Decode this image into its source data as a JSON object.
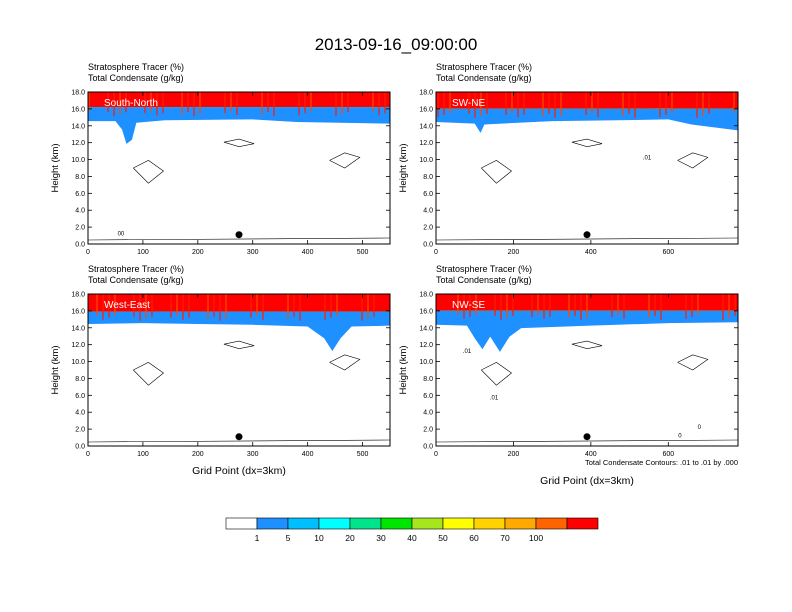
{
  "figure": {
    "title": "2013-09-16_09:00:00",
    "xlabel": "Grid Point (dx=3km)",
    "contour_note": "Total Condensate Contours: .01 to .01 by .000",
    "colorbar": {
      "labels": [
        "1",
        "5",
        "10",
        "20",
        "30",
        "40",
        "50",
        "60",
        "70",
        "100"
      ],
      "colors": [
        "#ffffff",
        "#1e90ff",
        "#00bfff",
        "#00ffff",
        "#00e58c",
        "#00e600",
        "#a5e61e",
        "#ffff00",
        "#ffd200",
        "#ffaa00",
        "#ff6400",
        "#ff0000"
      ]
    }
  },
  "chart_data": [
    {
      "type": "heatmap",
      "panel_label": "South-North",
      "subtitle_1": "Stratosphere Tracer   (%)",
      "subtitle_2": "Total Condensate   (g/kg)",
      "ylabel": "Height (km)",
      "xlabel": "",
      "xlim": [
        0,
        550
      ],
      "ylim": [
        0,
        18
      ],
      "xticks": [
        0,
        100,
        200,
        300,
        400,
        500
      ],
      "yticks": [
        "0.0",
        "2.0",
        "4.0",
        "6.0",
        "8.0",
        "10.0",
        "12.0",
        "14.0",
        "16.0",
        "18.0"
      ],
      "tropopause_km": [
        [
          0,
          14.6
        ],
        [
          50,
          14.6
        ],
        [
          62,
          13.6
        ],
        [
          70,
          11.9
        ],
        [
          80,
          12.4
        ],
        [
          88,
          14.4
        ],
        [
          140,
          14.7
        ],
        [
          300,
          14.8
        ],
        [
          380,
          14.5
        ],
        [
          550,
          14.3
        ]
      ],
      "red_bottom_km": 16.2,
      "marker": {
        "x": 275,
        "y": 1.1
      },
      "contour_labels": [
        {
          "text": "00",
          "x": 60,
          "y": 1.0
        }
      ]
    },
    {
      "type": "heatmap",
      "panel_label": "SW-NE",
      "subtitle_1": "Stratosphere Tracer   (%)",
      "subtitle_2": "Total Condensate   (g/kg)",
      "ylabel": "Height (km)",
      "xlabel": "",
      "xlim": [
        0,
        780
      ],
      "ylim": [
        0,
        18
      ],
      "xticks": [
        0,
        200,
        400,
        600
      ],
      "yticks": [
        "0.0",
        "2.0",
        "4.0",
        "6.0",
        "8.0",
        "10.0",
        "12.0",
        "14.0",
        "16.0",
        "18.0"
      ],
      "tropopause_km": [
        [
          0,
          14.5
        ],
        [
          100,
          14.3
        ],
        [
          115,
          13.2
        ],
        [
          125,
          14.2
        ],
        [
          300,
          14.6
        ],
        [
          470,
          14.7
        ],
        [
          600,
          14.8
        ],
        [
          660,
          14.2
        ],
        [
          780,
          13.5
        ]
      ],
      "red_bottom_km": 16.0,
      "marker": {
        "x": 390,
        "y": 1.1
      },
      "contour_labels": [
        {
          "text": ".01",
          "x": 545,
          "y": 10.0
        }
      ]
    },
    {
      "type": "heatmap",
      "panel_label": "West-East",
      "subtitle_1": "Stratosphere Tracer   (%)",
      "subtitle_2": "Total Condensate   (g/kg)",
      "ylabel": "Height (km)",
      "xlabel": "Grid Point (dx=3km)",
      "xlim": [
        0,
        550
      ],
      "ylim": [
        0,
        18
      ],
      "xticks": [
        0,
        100,
        200,
        300,
        400,
        500
      ],
      "yticks": [
        "0.0",
        "2.0",
        "4.0",
        "6.0",
        "8.0",
        "10.0",
        "12.0",
        "14.0",
        "16.0",
        "18.0"
      ],
      "tropopause_km": [
        [
          0,
          14.5
        ],
        [
          100,
          14.6
        ],
        [
          200,
          14.5
        ],
        [
          300,
          14.4
        ],
        [
          400,
          14.2
        ],
        [
          430,
          12.8
        ],
        [
          445,
          11.3
        ],
        [
          460,
          12.8
        ],
        [
          480,
          14.2
        ],
        [
          550,
          14.3
        ]
      ],
      "red_bottom_km": 15.9,
      "marker": {
        "x": 275,
        "y": 1.1
      },
      "contour_labels": []
    },
    {
      "type": "heatmap",
      "panel_label": "NW-SE",
      "subtitle_1": "Stratosphere Tracer   (%)",
      "subtitle_2": "Total Condensate   (g/kg)",
      "ylabel": "Height (km)",
      "xlabel": "Grid Point (dx=3km)",
      "xlim": [
        0,
        780
      ],
      "ylim": [
        0,
        18
      ],
      "xticks": [
        0,
        200,
        400,
        600
      ],
      "yticks": [
        "0.0",
        "2.0",
        "4.0",
        "6.0",
        "8.0",
        "10.0",
        "12.0",
        "14.0",
        "16.0",
        "18.0"
      ],
      "tropopause_km": [
        [
          0,
          14.4
        ],
        [
          80,
          14.3
        ],
        [
          100,
          12.8
        ],
        [
          120,
          11.5
        ],
        [
          140,
          13.0
        ],
        [
          165,
          11.2
        ],
        [
          190,
          13.0
        ],
        [
          220,
          14.0
        ],
        [
          400,
          14.3
        ],
        [
          600,
          14.6
        ],
        [
          780,
          14.7
        ]
      ],
      "red_bottom_km": 16.0,
      "marker": {
        "x": 390,
        "y": 1.1
      },
      "contour_labels": [
        {
          "text": ".01",
          "x": 80,
          "y": 11.0
        },
        {
          "text": ".01",
          "x": 150,
          "y": 5.5
        },
        {
          "text": "0",
          "x": 630,
          "y": 1.0
        },
        {
          "text": "0",
          "x": 680,
          "y": 2.0
        }
      ]
    }
  ]
}
